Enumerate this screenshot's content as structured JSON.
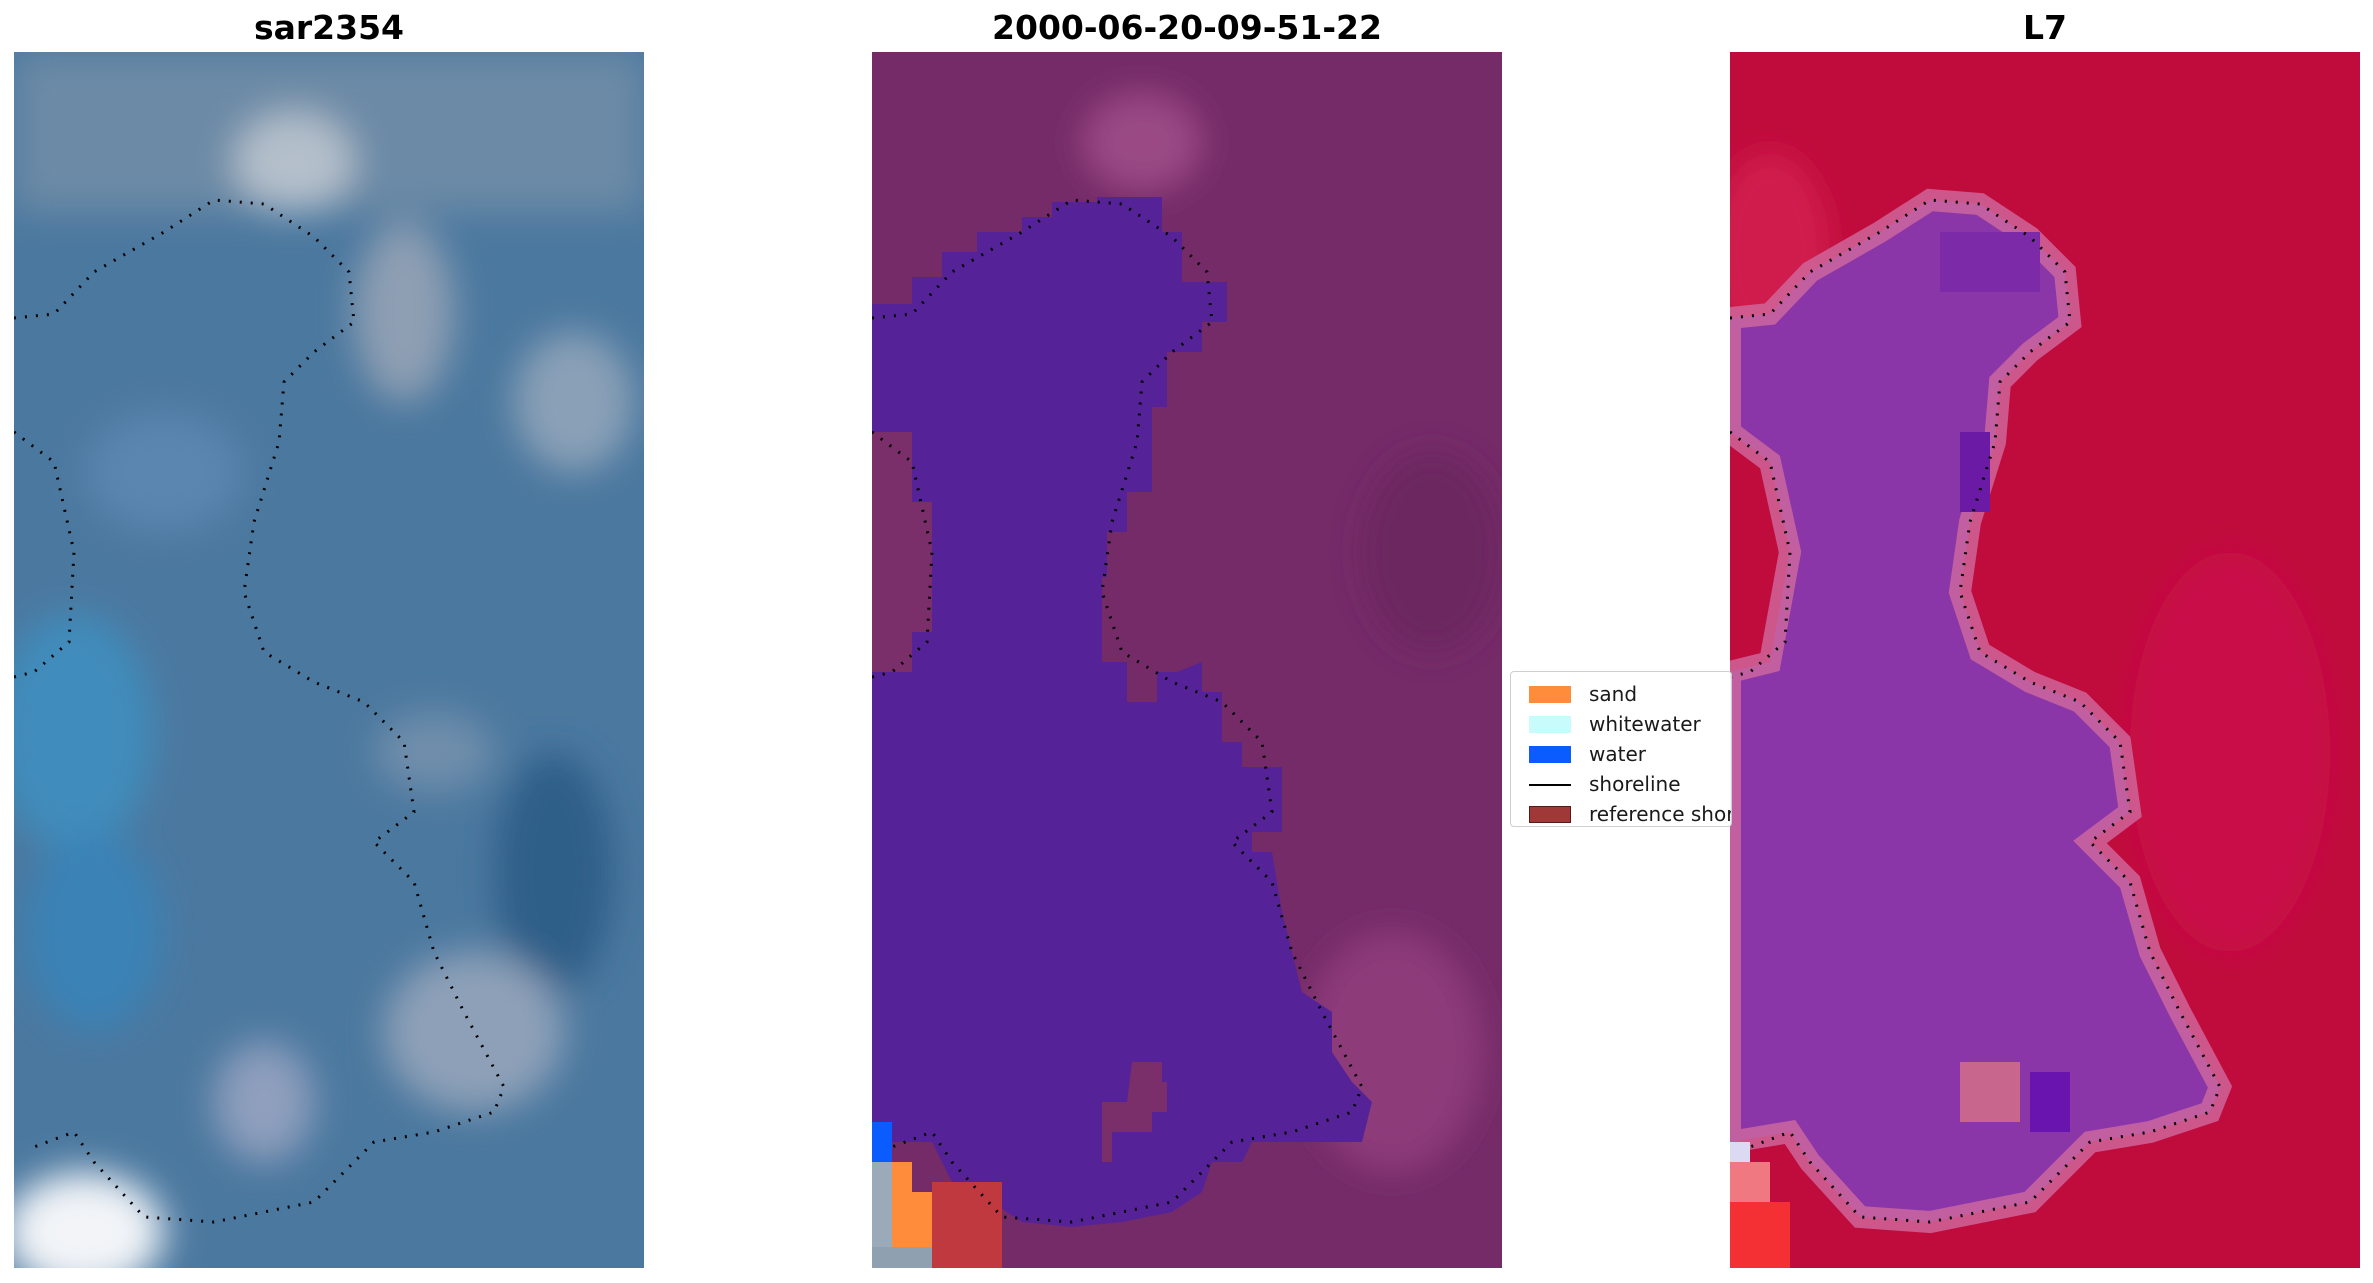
{
  "panels": [
    {
      "title": "sar2354",
      "kind": "rgb"
    },
    {
      "title": "2000-06-20-09-51-22",
      "kind": "classified"
    },
    {
      "title": "L7",
      "kind": "false-color"
    }
  ],
  "legend": {
    "items": [
      {
        "label": "sand",
        "color": "#ff8c3a",
        "type": "patch"
      },
      {
        "label": "whitewater",
        "color": "#c8fcfc",
        "type": "patch"
      },
      {
        "label": "water",
        "color": "#0a5cff",
        "type": "patch"
      },
      {
        "label": "shoreline",
        "color": "#000000",
        "type": "line"
      },
      {
        "label": "reference shoreline",
        "color": "#a13838",
        "type": "patch"
      }
    ]
  },
  "colors": {
    "rgb_base": "#4a7aa4",
    "classified_land": "#7a2e6a",
    "classified_water": "#552397",
    "fc_land": "#c00c3c",
    "fc_water": "#8a36a8"
  }
}
